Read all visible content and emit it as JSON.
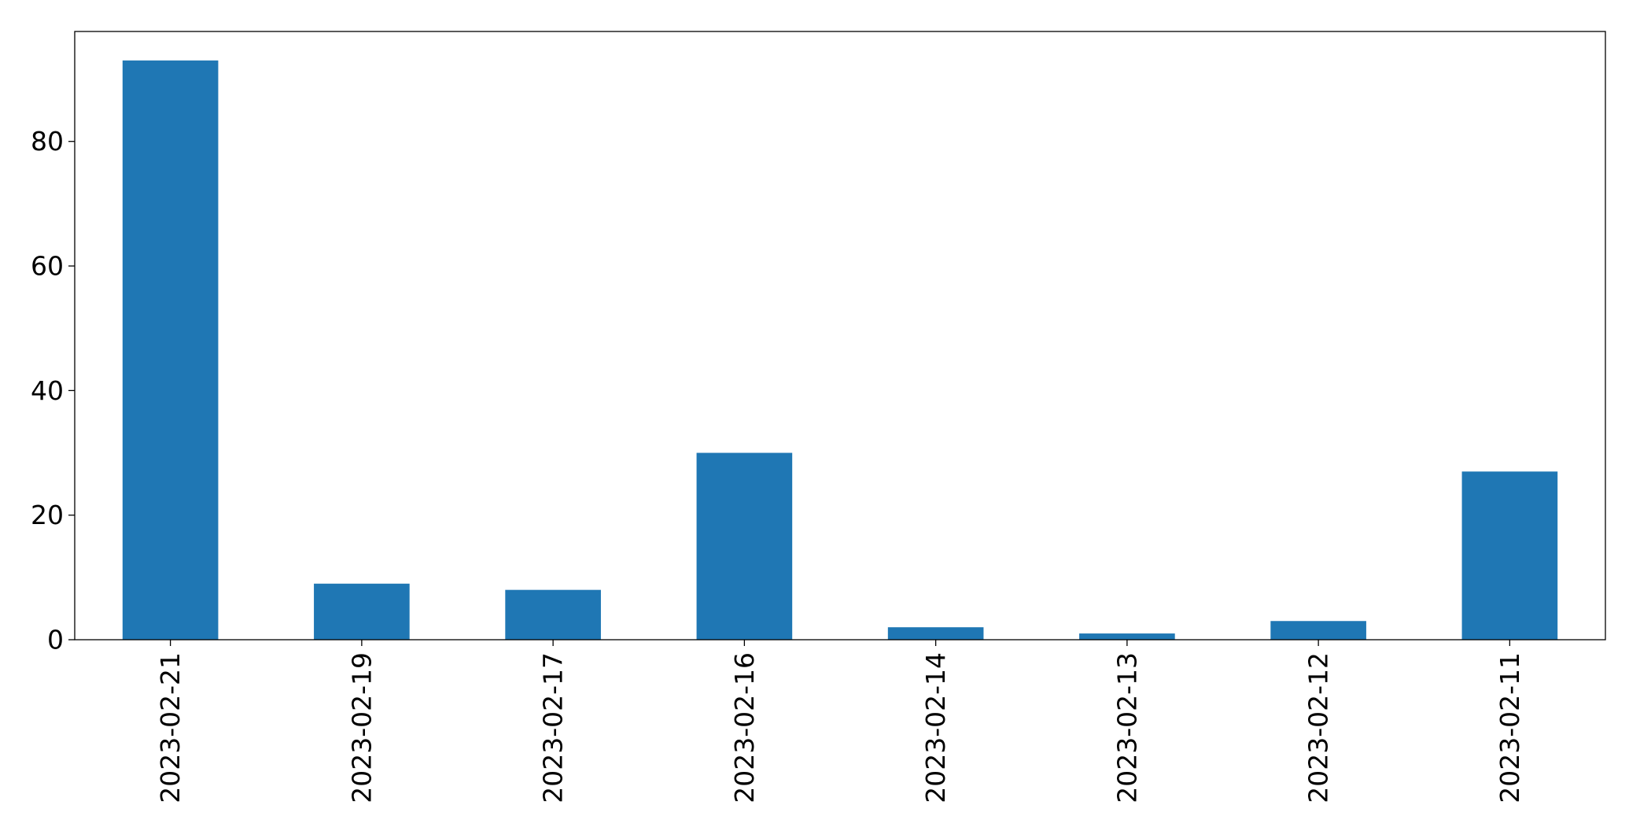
{
  "chart_data": {
    "type": "bar",
    "categories": [
      "2023-02-21",
      "2023-02-19",
      "2023-02-17",
      "2023-02-16",
      "2023-02-14",
      "2023-02-13",
      "2023-02-12",
      "2023-02-11"
    ],
    "values": [
      93,
      9,
      8,
      30,
      2,
      1,
      3,
      27
    ],
    "title": "",
    "xlabel": "",
    "ylabel": "",
    "ylim": [
      0,
      97.65
    ],
    "yticks": [
      0,
      20,
      40,
      60,
      80
    ],
    "grid": false,
    "legend": "none",
    "bar_color": "#1f77b4",
    "x_tick_rotation": "vertical"
  }
}
